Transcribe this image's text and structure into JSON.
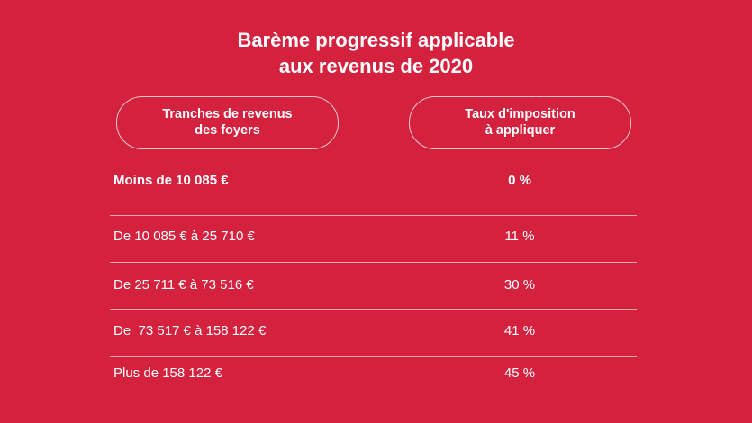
{
  "title": {
    "lines": [
      "Barème progressif applicable",
      "aux revenus de 2020"
    ]
  },
  "table": {
    "headers": [
      {
        "lines": [
          "Tranches de revenus",
          "des foyers"
        ]
      },
      {
        "lines": [
          "Taux d'imposition",
          "à appliquer"
        ]
      }
    ],
    "rows": [
      [
        "Moins de 10 085 €",
        "0 %"
      ],
      [
        "De 10 085 € à 25 710 €",
        "11 %"
      ],
      [
        "De 25 711 € à 73 516 €",
        "30 %"
      ],
      [
        "De  73 517 € à 158 122 €",
        "41 %"
      ],
      [
        "Plus de 158 122 €",
        "45 %"
      ]
    ]
  }
}
